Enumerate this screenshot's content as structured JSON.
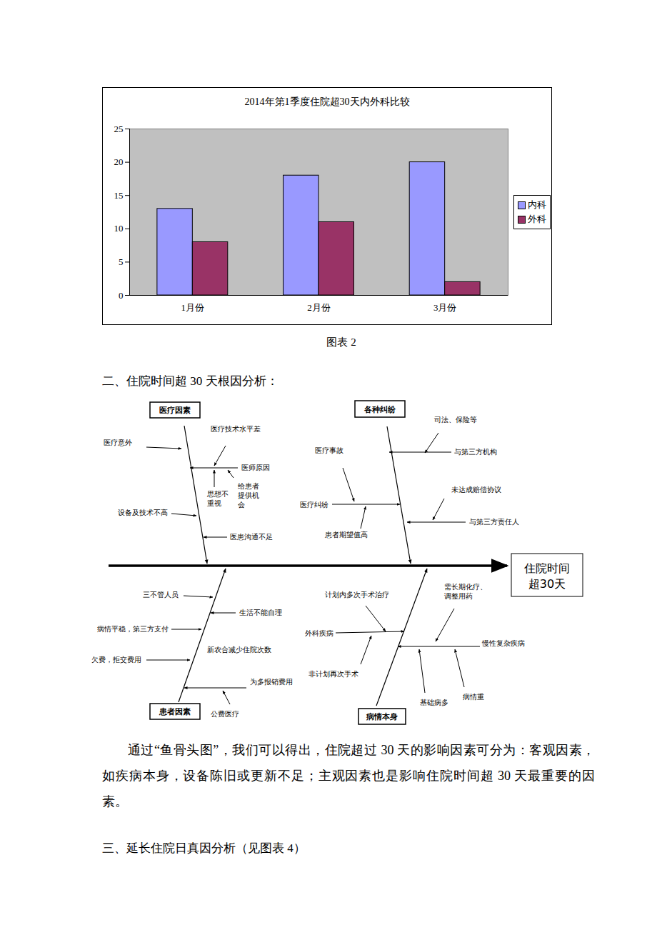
{
  "chart_data": {
    "type": "bar",
    "title": "2014年第1季度住院超30天内外科比较",
    "categories": [
      "1月份",
      "2月份",
      "3月份"
    ],
    "series": [
      {
        "name": "内科",
        "color": "#9999ff",
        "values": [
          13,
          18,
          20
        ]
      },
      {
        "name": "外科",
        "color": "#993366",
        "values": [
          8,
          11,
          2
        ]
      }
    ],
    "ylim": [
      0,
      25
    ],
    "yticks": [
      0,
      5,
      10,
      15,
      20,
      25
    ],
    "grid": false,
    "legend": "right"
  },
  "caption": "图表 2",
  "section_2": {
    "heading": "二、住院时间超 30 天根因分析：",
    "fishbone": {
      "effect": [
        "住院时间",
        "超30天"
      ],
      "categories": [
        {
          "label": "医疗因素",
          "causes": [
            "医疗意外",
            "医疗技术水平差",
            "医师原因",
            "思想不重视",
            "给患者提供机会",
            "设备及技术不高",
            "医患沟通不足"
          ]
        },
        {
          "label": "各种纠纷",
          "causes": [
            "医疗事故",
            "医疗纠纷",
            "患者期望值高",
            "司法、保险等",
            "与第三方机构",
            "未达成赔偿协议",
            "与第三方责任人"
          ]
        },
        {
          "label": "患者因素",
          "causes": [
            "三不管人员",
            "生活不能自理",
            "病情平稳，第三方支付",
            "新农合减少住院次数",
            "欠费，拒交费用",
            "为多报销费用",
            "公费医疗"
          ]
        },
        {
          "label": "病情本身",
          "causes": [
            "计划内多次手术治疗",
            "外科疾病",
            "非计划再次手术",
            "需长期化疗、调整用药",
            "慢性复杂疾病",
            "基础病多",
            "病情重"
          ]
        }
      ]
    },
    "paragraph": "通过“鱼骨头图”，我们可以得出，住院超过 30 天的影响因素可分为：客观因素，如疾病本身，设备陈旧或更新不足；主观因素也是影响住院时间超 30 天最重要的因素。"
  },
  "section_3": {
    "heading": "三、延长住院日真因分析（见图表 4）"
  }
}
